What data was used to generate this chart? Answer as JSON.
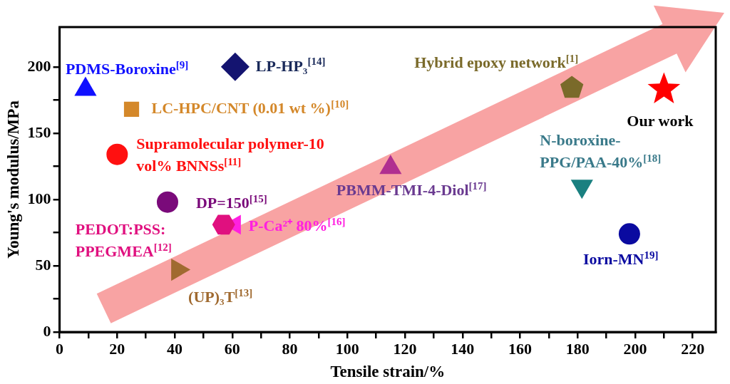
{
  "chart_data": {
    "type": "scatter",
    "xlabel": "Tensile strain/%",
    "ylabel": "Young's modulus/MPa",
    "xlim": [
      0,
      228
    ],
    "ylim": [
      0,
      230
    ],
    "xticks": [
      0,
      {
        "value": 10,
        "label": null
      },
      20,
      {
        "value": 30,
        "label": null
      },
      40,
      {
        "value": 50,
        "label": null
      },
      60,
      {
        "value": 70,
        "label": null
      },
      80,
      {
        "value": 90,
        "label": null
      },
      100,
      {
        "value": 110,
        "label": null
      },
      120,
      {
        "value": 130,
        "label": null
      },
      140,
      {
        "value": 150,
        "label": null
      },
      160,
      {
        "value": 170,
        "label": null
      },
      180,
      {
        "value": 190,
        "label": null
      },
      200,
      {
        "value": 210,
        "label": null
      },
      220
    ],
    "yticks": [
      0,
      {
        "value": 25,
        "label": null
      },
      50,
      {
        "value": 75,
        "label": null
      },
      100,
      {
        "value": 125,
        "label": null
      },
      150,
      {
        "value": 175,
        "label": null
      },
      200
    ],
    "legend": false,
    "series": [
      {
        "name": "PDMS-Boroxine$^{[9]}$",
        "color": "#1010ff",
        "marker": "triangle",
        "x": [
          9
        ],
        "values": [
          183
        ]
      },
      {
        "name": "LP-HP₃$^{[14]}$",
        "color": "#141470",
        "marker": "diamond",
        "x": [
          61
        ],
        "values": [
          200
        ]
      },
      {
        "name": "LC-HPC/CNT (0.01 wt %)$^{[10]}$",
        "color": "#d4882a",
        "marker": "square",
        "x": [
          25
        ],
        "values": [
          168
        ]
      },
      {
        "name": "Supramolecular polymer-10 vol% BNNSs$^{[11]}$",
        "color": "#ff1010",
        "marker": "circle",
        "x": [
          20
        ],
        "values": [
          134
        ]
      },
      {
        "name": "DP=150$^{[15]}$",
        "color": "#7a0a7a",
        "marker": "circle",
        "x": [
          37.5
        ],
        "values": [
          98
        ]
      },
      {
        "name": "PEDOT:PSS: PPEGMEA$^{[12]}$",
        "color": "#e0107f",
        "x": [
          57
        ],
        "values": [
          81
        ]
      },
      {
        "name": "P-Ca²⁺ 80%$^{[16]}$",
        "color": "#ff20e0",
        "marker": "triangle-left",
        "x": [
          61
        ],
        "values": [
          81
        ]
      },
      {
        "name": "(UP)₃T$^{[13]}$",
        "color": "#a06a30",
        "marker": "triangle-right",
        "x": [
          41
        ],
        "values": [
          47
        ]
      },
      {
        "name": "PBMM-TMI-4-Diol$^{[17]}$",
        "color": "#b02f90",
        "marker": "triangle",
        "x": [
          115
        ],
        "values": [
          124
        ]
      },
      {
        "name": "Hybrid epoxy network$^{[1]}$",
        "color": "#7a6a2a",
        "x": [
          178
        ],
        "values": [
          184
        ]
      },
      {
        "name": "Our work",
        "color": "#ff0000",
        "marker": "star",
        "x": [
          210
        ],
        "values": [
          183
        ]
      },
      {
        "name": "N-boroxine-PPG/PAA-40%$^{[18]}$",
        "color": "#1a8080",
        "marker": "triangle-down",
        "x": [
          181.5
        ],
        "values": [
          110
        ]
      },
      {
        "name": "Iorn-MN$^{19]}$",
        "color": "#0a0aa0",
        "marker": "circle",
        "x": [
          198
        ],
        "values": [
          74
        ]
      }
    ]
  }
}
